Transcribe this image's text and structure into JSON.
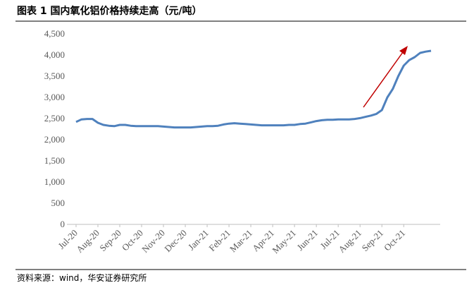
{
  "chart_data": {
    "type": "line",
    "title": "图表 1 国内氧化铝价格持续走高（元/吨）",
    "source": "资料来源：wind，华安证券研究所",
    "categories": [
      "Jul-20",
      null,
      null,
      null,
      "Aug-20",
      null,
      null,
      null,
      "Sep-20",
      null,
      null,
      null,
      "Oct-20",
      null,
      null,
      null,
      "Nov-20",
      null,
      null,
      null,
      "Dec-20",
      null,
      null,
      null,
      "Jan-21",
      null,
      null,
      null,
      "Feb-21",
      null,
      null,
      null,
      "Mar-21",
      null,
      null,
      null,
      "Apr-21",
      null,
      null,
      null,
      "May-21",
      null,
      null,
      null,
      "Jun-21",
      null,
      null,
      null,
      "Jul-21",
      null,
      null,
      null,
      "Aug-21",
      null,
      null,
      null,
      "Sep-21",
      null,
      null,
      null,
      "Oct-21",
      null,
      null,
      null,
      null,
      null
    ],
    "series": [
      {
        "color": "#4f81bd",
        "values": [
          2420,
          2480,
          2490,
          2490,
          2400,
          2350,
          2330,
          2320,
          2350,
          2350,
          2330,
          2320,
          2320,
          2320,
          2320,
          2320,
          2310,
          2300,
          2290,
          2290,
          2290,
          2290,
          2300,
          2310,
          2320,
          2320,
          2330,
          2360,
          2380,
          2390,
          2380,
          2370,
          2360,
          2350,
          2340,
          2340,
          2340,
          2340,
          2340,
          2350,
          2350,
          2370,
          2380,
          2410,
          2440,
          2460,
          2470,
          2470,
          2480,
          2480,
          2480,
          2490,
          2510,
          2540,
          2570,
          2610,
          2700,
          3000,
          3200,
          3500,
          3750,
          3880,
          3950,
          4050,
          4080,
          4100
        ]
      }
    ],
    "ylim": [
      0,
      4500
    ],
    "yticks": [
      0,
      500,
      {
        "value": 1000,
        "label": "1,000"
      },
      {
        "value": 1500,
        "label": "1,500"
      },
      {
        "value": 2000,
        "label": "2,000"
      },
      {
        "value": 2500,
        "label": "2,500"
      },
      {
        "value": 3000,
        "label": "3,000"
      },
      {
        "value": 3500,
        "label": "3,500"
      },
      {
        "value": 4000,
        "label": "4,000"
      },
      {
        "value": 4500,
        "label": "4,500"
      }
    ]
  }
}
